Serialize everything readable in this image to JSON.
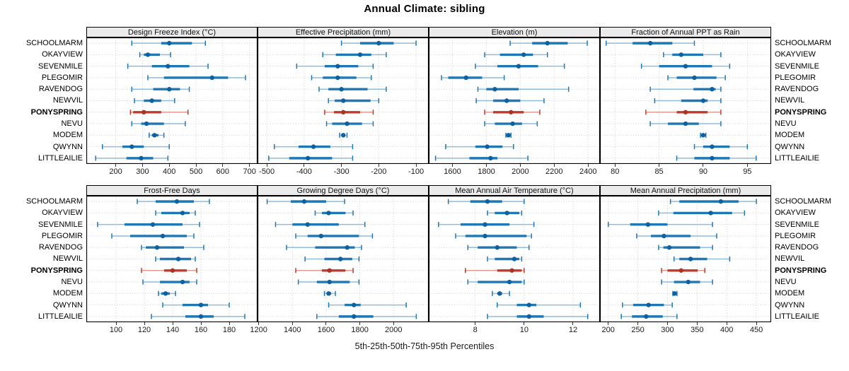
{
  "title": "Annual Climate: sibling",
  "caption": "5th-25th-50th-75th-95th Percentiles",
  "chart_data": {
    "type": "dotplot-percentile-intervals",
    "percentiles": [
      "5th",
      "25th",
      "50th",
      "75th",
      "95th"
    ],
    "legend_position": "none",
    "grid": "dotted",
    "sites": [
      "SCHOOLMARM",
      "OKAYVIEW",
      "SEVENMILE",
      "PLEGOMIR",
      "RAVENDOG",
      "NEWVIL",
      "PONYSPRING",
      "NEVU",
      "MODEM",
      "QWYNN",
      "LITTLEAILIE"
    ],
    "highlight_site": "PONYSPRING",
    "colors": {
      "blue_main": "#1f77b4",
      "blue_light": "#8fbcdf",
      "blue_dot": "#0e61a0",
      "red_main": "#c0392b",
      "red_light": "#e59a92",
      "red_dot": "#ad3226",
      "grid": "#cfcfcf",
      "strip_bg": "#ebebeb",
      "border": "#000000"
    },
    "panels": [
      {
        "title": "Design Freeze Index (°C)",
        "domain": [
          90,
          730
        ],
        "ticks": [
          200,
          300,
          400,
          500,
          600,
          700
        ],
        "values": [
          [
            260,
            370,
            400,
            485,
            535
          ],
          [
            290,
            305,
            320,
            365,
            405
          ],
          [
            245,
            335,
            395,
            475,
            545
          ],
          [
            320,
            380,
            560,
            620,
            685
          ],
          [
            260,
            340,
            400,
            440,
            475
          ],
          [
            270,
            305,
            335,
            370,
            420
          ],
          [
            255,
            265,
            305,
            370,
            470
          ],
          [
            260,
            295,
            315,
            380,
            460
          ],
          [
            325,
            335,
            345,
            360,
            380
          ],
          [
            150,
            225,
            260,
            305,
            400
          ],
          [
            125,
            240,
            295,
            340,
            395
          ]
        ]
      },
      {
        "title": "Effective Precipitation (mm)",
        "domain": [
          -525,
          -66
        ],
        "ticks": [
          -500,
          -400,
          -300,
          -200,
          -100
        ],
        "values": [
          [
            -300,
            -250,
            -200,
            -160,
            -100
          ],
          [
            -350,
            -315,
            -250,
            -220,
            -180
          ],
          [
            -420,
            -345,
            -310,
            -255,
            -215
          ],
          [
            -380,
            -350,
            -310,
            -260,
            -220
          ],
          [
            -360,
            -335,
            -300,
            -230,
            -180
          ],
          [
            -335,
            -318,
            -295,
            -222,
            -200
          ],
          [
            -345,
            -320,
            -295,
            -250,
            -215
          ],
          [
            -340,
            -325,
            -285,
            -245,
            -215
          ],
          [
            -305,
            -300,
            -295,
            -290,
            -285
          ],
          [
            -480,
            -415,
            -375,
            -330,
            -270
          ],
          [
            -495,
            -440,
            -390,
            -325,
            -270
          ]
        ]
      },
      {
        "title": "Elevation (m)",
        "domain": [
          1460,
          2470
        ],
        "ticks": [
          1600,
          1800,
          2000,
          2200,
          2400
        ],
        "values": [
          [
            1940,
            2070,
            2160,
            2280,
            2395
          ],
          [
            1790,
            1880,
            2020,
            2075,
            2160
          ],
          [
            1735,
            1865,
            1990,
            2105,
            2260
          ],
          [
            1535,
            1575,
            1680,
            1775,
            1905
          ],
          [
            1750,
            1800,
            1850,
            1990,
            2285
          ],
          [
            1740,
            1840,
            1920,
            2000,
            2140
          ],
          [
            1790,
            1840,
            1945,
            2020,
            2115
          ],
          [
            1790,
            1850,
            1955,
            2010,
            2100
          ],
          [
            1915,
            1925,
            1930,
            1935,
            1945
          ],
          [
            1560,
            1735,
            1805,
            1895,
            1960
          ],
          [
            1500,
            1700,
            1825,
            1865,
            2045
          ]
        ]
      },
      {
        "title": "Fraction of Annual PPT as Rain",
        "domain": [
          78.3,
          97.7
        ],
        "ticks": [
          80,
          85,
          90,
          95
        ],
        "values": [
          [
            79,
            82,
            84,
            86.5,
            89
          ],
          [
            85.5,
            86.5,
            87.5,
            90,
            92
          ],
          [
            83,
            85,
            88,
            91,
            93
          ],
          [
            86,
            87,
            89,
            91.5,
            92.5
          ],
          [
            84,
            88.9,
            91,
            91.4,
            92
          ],
          [
            84.5,
            87.5,
            90,
            90.5,
            92
          ],
          [
            83.5,
            87,
            88,
            90.5,
            92
          ],
          [
            84,
            86,
            88,
            89.5,
            92
          ],
          [
            89.7,
            89.9,
            90,
            90.1,
            90.3
          ],
          [
            89,
            90,
            91,
            93,
            95
          ],
          [
            87,
            89,
            91,
            93,
            96
          ]
        ]
      },
      {
        "title": "Frost-Free Days",
        "domain": [
          79,
          200
        ],
        "ticks": [
          100,
          120,
          140,
          160,
          180
        ],
        "values": [
          [
            115,
            128,
            143,
            155,
            166
          ],
          [
            128,
            132,
            147,
            152,
            156
          ],
          [
            87,
            106,
            126,
            147,
            159
          ],
          [
            97,
            110,
            133,
            150,
            155
          ],
          [
            118,
            121,
            129,
            148,
            162
          ],
          [
            128,
            131,
            144,
            153,
            156
          ],
          [
            118,
            134,
            140,
            150,
            157
          ],
          [
            119,
            131,
            147,
            152,
            157
          ],
          [
            130,
            132,
            135,
            138,
            142
          ],
          [
            133,
            147,
            160,
            165,
            180
          ],
          [
            125,
            149,
            160,
            169,
            191
          ]
        ]
      },
      {
        "title": "Growing Degree Days (°C)",
        "domain": [
          1193,
          2209
        ],
        "ticks": [
          1200,
          1400,
          1600,
          1800,
          2000
        ],
        "values": [
          [
            1250,
            1390,
            1470,
            1600,
            1710
          ],
          [
            1535,
            1575,
            1615,
            1715,
            1760
          ],
          [
            1300,
            1400,
            1490,
            1675,
            1830
          ],
          [
            1420,
            1490,
            1570,
            1795,
            1875
          ],
          [
            1365,
            1535,
            1725,
            1770,
            1810
          ],
          [
            1475,
            1590,
            1685,
            1755,
            1795
          ],
          [
            1420,
            1575,
            1620,
            1715,
            1760
          ],
          [
            1435,
            1545,
            1620,
            1740,
            1795
          ],
          [
            1590,
            1605,
            1615,
            1630,
            1655
          ],
          [
            1615,
            1710,
            1765,
            1805,
            2075
          ],
          [
            1545,
            1675,
            1765,
            1880,
            2135
          ]
        ]
      },
      {
        "title": "Mean Annual Air Temperature (°C)",
        "domain": [
          6.1,
          13.1
        ],
        "ticks": [
          8,
          10,
          12
        ],
        "values": [
          [
            6.9,
            7.8,
            8.5,
            9.1,
            10
          ],
          [
            8.5,
            8.8,
            9.3,
            9.8,
            9.9
          ],
          [
            6.5,
            7.4,
            8.4,
            9.4,
            10.4
          ],
          [
            7.2,
            7.6,
            8.4,
            10.1,
            10.3
          ],
          [
            7.7,
            8.1,
            8.9,
            9.7,
            10.2
          ],
          [
            8.5,
            8.8,
            9.6,
            9.8,
            9.9
          ],
          [
            7.6,
            8.9,
            9.5,
            9.9,
            10
          ],
          [
            7.7,
            8.1,
            9.4,
            9.9,
            10
          ],
          [
            8.7,
            8.9,
            9,
            9.1,
            9.4
          ],
          [
            8.9,
            9.7,
            10.2,
            10.5,
            12.3
          ],
          [
            8.5,
            9.7,
            10.2,
            10.8,
            12.6
          ]
        ]
      },
      {
        "title": "Mean Annual Precipitation (mm)",
        "domain": [
          186,
          475
        ],
        "ticks": [
          200,
          250,
          300,
          350,
          400,
          450
        ],
        "values": [
          [
            305,
            320,
            390,
            420,
            450
          ],
          [
            285,
            310,
            373,
            409,
            430
          ],
          [
            200,
            237,
            267,
            300,
            376
          ],
          [
            248,
            272,
            294,
            339,
            383
          ],
          [
            285,
            293,
            303,
            355,
            376
          ],
          [
            311,
            320,
            339,
            367,
            405
          ],
          [
            290,
            300,
            323,
            351,
            363
          ],
          [
            290,
            311,
            335,
            355,
            376
          ],
          [
            309,
            311,
            312,
            314,
            316
          ],
          [
            224,
            242,
            268,
            294,
            308
          ],
          [
            222,
            240,
            264,
            292,
            316
          ]
        ]
      }
    ]
  }
}
